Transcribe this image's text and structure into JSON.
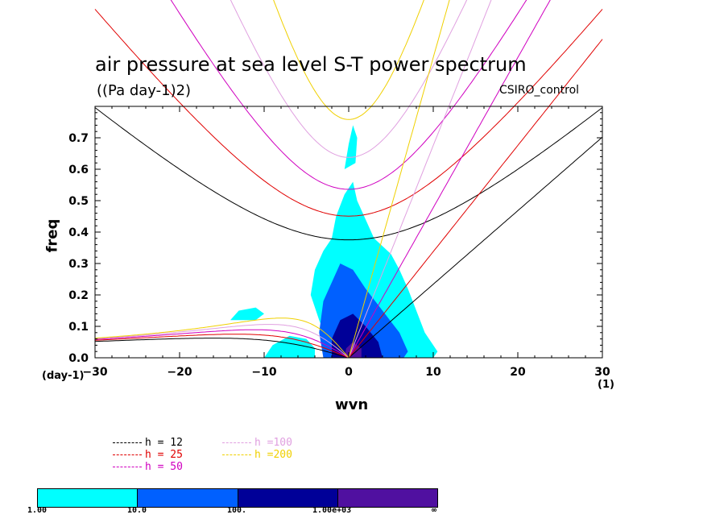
{
  "title": "air pressure at sea level S-T power spectrum",
  "units": "((Pa day-1)2)",
  "model": "CSIRO_control",
  "chart_data": {
    "type": "heatmap",
    "xlabel": "wvn",
    "ylabel": "freq",
    "x_unit_left": "(day-1)",
    "x_unit_right": "(1)",
    "xlim": [
      -30,
      30
    ],
    "ylim": [
      0,
      0.8
    ],
    "x_ticks": [
      "-30",
      "-20",
      "-10",
      "0",
      "10",
      "20",
      "30"
    ],
    "y_ticks": [
      "0.0",
      "0.1",
      "0.2",
      "0.3",
      "0.4",
      "0.5",
      "0.6",
      "0.7"
    ],
    "dispersion_legend": [
      {
        "label": "h = 12",
        "color": "#000000"
      },
      {
        "label": "h = 25",
        "color": "#e00000"
      },
      {
        "label": "h = 50",
        "color": "#d000c0"
      },
      {
        "label": "h =100",
        "color": "#e0a0e0"
      },
      {
        "label": "h =200",
        "color": "#f0d000"
      }
    ],
    "colorbar": {
      "labels": [
        "1.00",
        "10.0",
        "100.",
        "1.00e+03",
        "∞"
      ],
      "colors": [
        "#00ffff",
        "#0060ff",
        "#000098",
        "#5010a0"
      ]
    },
    "contour_regions": [
      {
        "level": 1,
        "points": [
          [
            -1.5,
            0.0
          ],
          [
            -2.5,
            0.05
          ],
          [
            -3.5,
            0.12
          ],
          [
            -4.5,
            0.2
          ],
          [
            -4,
            0.28
          ],
          [
            -3,
            0.34
          ],
          [
            -2,
            0.38
          ],
          [
            -1.5,
            0.45
          ],
          [
            -0.5,
            0.52
          ],
          [
            0.5,
            0.56
          ],
          [
            1,
            0.5
          ],
          [
            2,
            0.44
          ],
          [
            3,
            0.38
          ],
          [
            5,
            0.33
          ],
          [
            6,
            0.28
          ],
          [
            7,
            0.22
          ],
          [
            8,
            0.15
          ],
          [
            9,
            0.08
          ],
          [
            10.5,
            0.02
          ],
          [
            10,
            0.0
          ]
        ]
      },
      {
        "level": 1,
        "points": [
          [
            -10,
            0.0
          ],
          [
            -9,
            0.04
          ],
          [
            -7,
            0.07
          ],
          [
            -5,
            0.06
          ],
          [
            -4,
            0.03
          ],
          [
            -4,
            0.0
          ]
        ]
      },
      {
        "level": 1,
        "points": [
          [
            -14,
            0.12
          ],
          [
            -13,
            0.15
          ],
          [
            -11,
            0.16
          ],
          [
            -10,
            0.14
          ],
          [
            -11,
            0.12
          ]
        ]
      },
      {
        "level": 1,
        "points": [
          [
            -0.5,
            0.6
          ],
          [
            0,
            0.68
          ],
          [
            0.5,
            0.74
          ],
          [
            1,
            0.7
          ],
          [
            0.8,
            0.62
          ]
        ]
      },
      {
        "level": 10,
        "points": [
          [
            -3,
            0.0
          ],
          [
            -3.5,
            0.08
          ],
          [
            -3,
            0.18
          ],
          [
            -2,
            0.24
          ],
          [
            -1,
            0.3
          ],
          [
            0.5,
            0.28
          ],
          [
            2,
            0.22
          ],
          [
            4,
            0.15
          ],
          [
            6,
            0.08
          ],
          [
            7,
            0.02
          ],
          [
            6.5,
            0.0
          ]
        ]
      },
      {
        "level": 100,
        "points": [
          [
            -2,
            0.0
          ],
          [
            -2,
            0.06
          ],
          [
            -1,
            0.12
          ],
          [
            0.5,
            0.14
          ],
          [
            2,
            0.1
          ],
          [
            3.5,
            0.05
          ],
          [
            4,
            0.0
          ]
        ]
      },
      {
        "level": 1000,
        "points": [
          [
            -0.5,
            0.0
          ],
          [
            -0.3,
            0.03
          ],
          [
            0.5,
            0.05
          ],
          [
            1.5,
            0.03
          ],
          [
            1.5,
            0.0
          ]
        ]
      }
    ]
  }
}
